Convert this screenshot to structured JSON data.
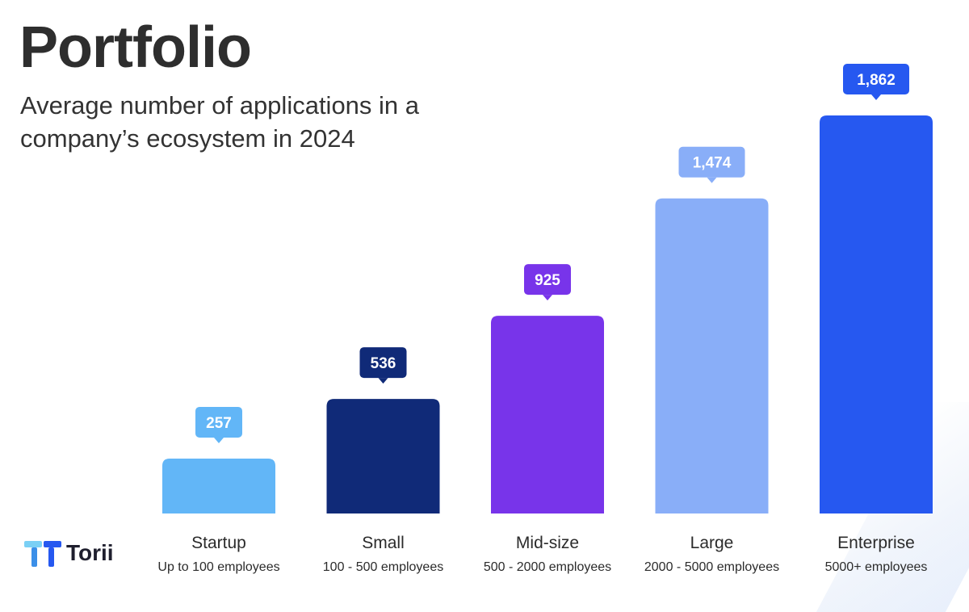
{
  "header": {
    "title": "Portfolio",
    "subtitle": "Average number of applications in a company’s ecosystem in 2024"
  },
  "brand": {
    "name": "Torii"
  },
  "chart_data": {
    "type": "bar",
    "title": "Portfolio",
    "subtitle": "Average number of applications in a company’s ecosystem in 2024",
    "categories": [
      "Startup",
      "Small",
      "Mid-size",
      "Large",
      "Enterprise"
    ],
    "category_subtitles": [
      "Up to 100 employees",
      "100 - 500 employees",
      "500 - 2000 employees",
      "2000 - 5000 employees",
      "5000+ employees"
    ],
    "values": [
      257,
      536,
      925,
      1474,
      1862
    ],
    "value_labels": [
      "257",
      "536",
      "925",
      "1,474",
      "1,862"
    ],
    "colors": [
      "#62b6f7",
      "#102a78",
      "#7834ea",
      "#89aef8",
      "#2658f0"
    ],
    "xlabel": "",
    "ylabel": "",
    "ylim": [
      0,
      1862
    ],
    "grid": false,
    "legend": "none"
  }
}
